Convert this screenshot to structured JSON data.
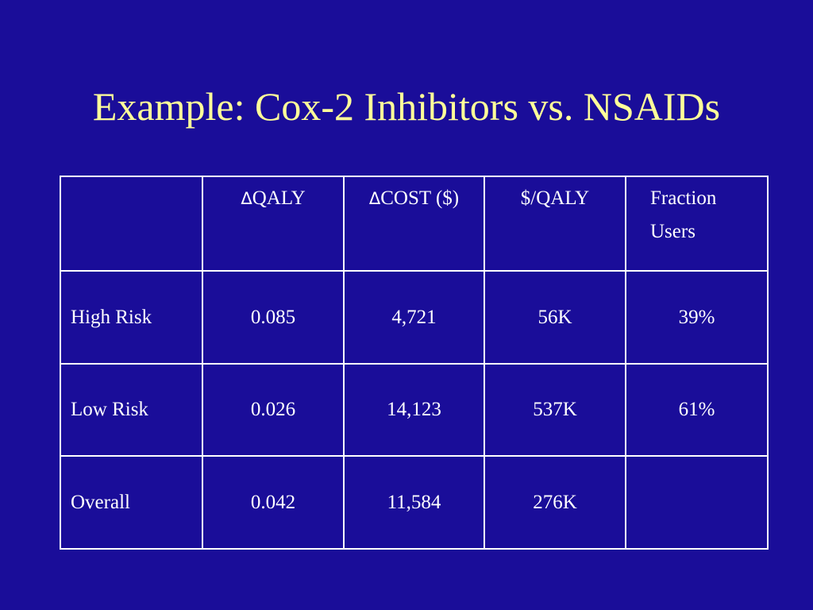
{
  "slide": {
    "title": "Example: Cox-2 Inhibitors vs. NSAIDs",
    "background_color": "#1a0d99",
    "title_color": "#ffff99",
    "text_color": "#ffffff"
  },
  "table": {
    "headers": [
      "",
      "QALY",
      "COST ($)",
      "$/QALY",
      "Fraction Users"
    ],
    "header_delta_symbol": "Δ",
    "rows": [
      [
        "High Risk",
        "0.085",
        "4,721",
        "56K",
        "39%"
      ],
      [
        "Low Risk",
        "0.026",
        "14,123",
        "537K",
        "61%"
      ],
      [
        "Overall",
        "0.042",
        "11,584",
        "276K",
        ""
      ]
    ]
  }
}
